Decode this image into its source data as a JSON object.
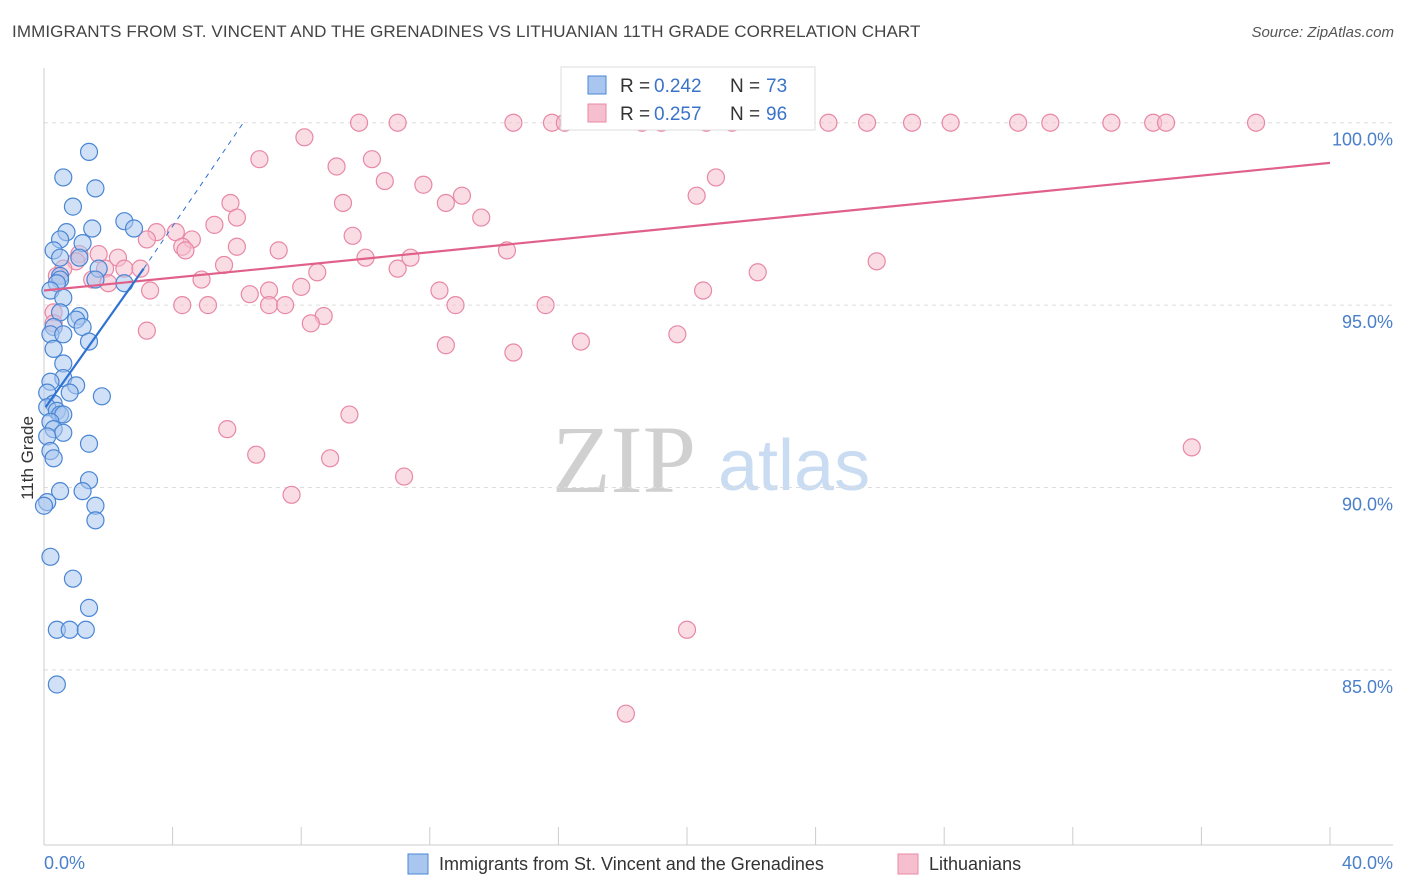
{
  "header": {
    "title": "IMMIGRANTS FROM ST. VINCENT AND THE GRENADINES VS LITHUANIAN 11TH GRADE CORRELATION CHART",
    "source": "Source: ZipAtlas.com"
  },
  "watermark": {
    "zip": "ZIP",
    "atlas": "atlas"
  },
  "colors": {
    "blue_fill": "#a9c6ee",
    "blue_stroke": "#4a86d4",
    "blue_line": "#2e72d2",
    "pink_fill": "#f6bfcf",
    "pink_stroke": "#e888a6",
    "pink_line": "#e0608a",
    "grid": "#dddddd",
    "tick_text": "#4a7fc9"
  },
  "legend": {
    "series1": {
      "r_label": "R =",
      "r_value": "0.242",
      "n_label": "N =",
      "n_value": "73"
    },
    "series2": {
      "r_label": "R =",
      "r_value": "0.257",
      "n_label": "N =",
      "n_value": "96"
    }
  },
  "bottom_legend": {
    "series1": "Immigrants from St. Vincent and the Grenadines",
    "series2": "Lithuanians"
  },
  "chart_data": {
    "type": "scatter",
    "title": "IMMIGRANTS FROM ST. VINCENT AND THE GRENADINES VS LITHUANIAN 11TH GRADE CORRELATION CHART",
    "xlabel": "",
    "ylabel": "11th Grade",
    "xlim": [
      0,
      40
    ],
    "ylim": [
      80.2,
      101.5
    ],
    "x_tick_labels": [
      "0.0%",
      "40.0%"
    ],
    "y_ticks": [
      {
        "value": 85,
        "label": "85.0%"
      },
      {
        "value": 90,
        "label": "90.0%"
      },
      {
        "value": 95,
        "label": "95.0%"
      },
      {
        "value": 100,
        "label": "100.0%"
      }
    ],
    "series": [
      {
        "name": "Immigrants from St. Vincent and the Grenadines",
        "R": 0.242,
        "N": 73,
        "trend": {
          "x": [
            0.05,
            3.1
          ],
          "y": [
            92.2,
            96.0
          ]
        },
        "trend_extension": {
          "x": [
            3.1,
            6.2
          ],
          "y": [
            96.0,
            100.0
          ]
        },
        "points": [
          [
            1.4,
            99.2
          ],
          [
            0.6,
            98.5
          ],
          [
            1.6,
            98.2
          ],
          [
            0.9,
            97.7
          ],
          [
            2.5,
            97.3
          ],
          [
            0.7,
            97.0
          ],
          [
            1.5,
            97.1
          ],
          [
            2.8,
            97.1
          ],
          [
            0.5,
            96.8
          ],
          [
            1.2,
            96.7
          ],
          [
            0.3,
            96.5
          ],
          [
            0.5,
            96.3
          ],
          [
            1.1,
            96.3
          ],
          [
            1.7,
            96.0
          ],
          [
            0.5,
            95.8
          ],
          [
            0.5,
            95.7
          ],
          [
            0.4,
            95.6
          ],
          [
            1.6,
            95.7
          ],
          [
            2.5,
            95.6
          ],
          [
            0.2,
            95.4
          ],
          [
            0.6,
            95.2
          ],
          [
            0.5,
            94.8
          ],
          [
            1.1,
            94.7
          ],
          [
            1.0,
            94.6
          ],
          [
            1.2,
            94.4
          ],
          [
            0.3,
            94.4
          ],
          [
            0.2,
            94.2
          ],
          [
            0.6,
            94.2
          ],
          [
            1.4,
            94.0
          ],
          [
            0.3,
            93.8
          ],
          [
            0.6,
            93.4
          ],
          [
            0.6,
            93.0
          ],
          [
            0.2,
            92.9
          ],
          [
            1.0,
            92.8
          ],
          [
            0.1,
            92.6
          ],
          [
            0.8,
            92.6
          ],
          [
            1.8,
            92.5
          ],
          [
            0.3,
            92.3
          ],
          [
            0.1,
            92.2
          ],
          [
            0.4,
            92.1
          ],
          [
            0.5,
            92.0
          ],
          [
            0.6,
            92.0
          ],
          [
            0.2,
            91.8
          ],
          [
            0.3,
            91.6
          ],
          [
            0.6,
            91.5
          ],
          [
            0.1,
            91.4
          ],
          [
            1.4,
            91.2
          ],
          [
            0.2,
            91.0
          ],
          [
            0.3,
            90.8
          ],
          [
            1.4,
            90.2
          ],
          [
            0.5,
            89.9
          ],
          [
            1.2,
            89.9
          ],
          [
            0.1,
            89.6
          ],
          [
            0.0,
            89.5
          ],
          [
            1.6,
            89.5
          ],
          [
            1.6,
            89.1
          ],
          [
            0.2,
            88.1
          ],
          [
            0.9,
            87.5
          ],
          [
            1.4,
            86.7
          ],
          [
            0.4,
            86.1
          ],
          [
            0.8,
            86.1
          ],
          [
            1.3,
            86.1
          ],
          [
            0.4,
            84.6
          ]
        ]
      },
      {
        "name": "Lithuanians",
        "R": 0.257,
        "N": 96,
        "trend": {
          "x": [
            0.0,
            40.0
          ],
          "y": [
            95.4,
            98.9
          ]
        },
        "points": [
          [
            9.8,
            100.0
          ],
          [
            11.0,
            100.0
          ],
          [
            14.6,
            100.0
          ],
          [
            15.8,
            100.0
          ],
          [
            16.2,
            100.0
          ],
          [
            18.6,
            100.0
          ],
          [
            19.2,
            100.0
          ],
          [
            20.6,
            100.0
          ],
          [
            21.4,
            100.0
          ],
          [
            24.4,
            100.0
          ],
          [
            25.6,
            100.0
          ],
          [
            27.0,
            100.0
          ],
          [
            28.2,
            100.0
          ],
          [
            30.3,
            100.0
          ],
          [
            31.3,
            100.0
          ],
          [
            33.2,
            100.0
          ],
          [
            34.5,
            100.0
          ],
          [
            34.9,
            100.0
          ],
          [
            37.7,
            100.0
          ],
          [
            8.1,
            99.6
          ],
          [
            6.7,
            99.0
          ],
          [
            10.2,
            99.0
          ],
          [
            9.1,
            98.8
          ],
          [
            10.6,
            98.4
          ],
          [
            11.8,
            98.3
          ],
          [
            20.9,
            98.5
          ],
          [
            20.3,
            98.0
          ],
          [
            13.0,
            98.0
          ],
          [
            12.5,
            97.8
          ],
          [
            9.3,
            97.8
          ],
          [
            5.8,
            97.8
          ],
          [
            6.0,
            97.4
          ],
          [
            13.6,
            97.4
          ],
          [
            5.3,
            97.2
          ],
          [
            3.5,
            97.0
          ],
          [
            4.1,
            97.0
          ],
          [
            3.2,
            96.8
          ],
          [
            4.6,
            96.8
          ],
          [
            9.6,
            96.9
          ],
          [
            4.3,
            96.6
          ],
          [
            4.4,
            96.5
          ],
          [
            6.0,
            96.6
          ],
          [
            7.3,
            96.5
          ],
          [
            14.4,
            96.5
          ],
          [
            1.1,
            96.4
          ],
          [
            1.7,
            96.4
          ],
          [
            2.3,
            96.3
          ],
          [
            1.0,
            96.2
          ],
          [
            10.0,
            96.3
          ],
          [
            11.4,
            96.3
          ],
          [
            25.9,
            96.2
          ],
          [
            5.6,
            96.1
          ],
          [
            0.6,
            96.0
          ],
          [
            1.9,
            96.0
          ],
          [
            2.5,
            96.0
          ],
          [
            3.0,
            96.0
          ],
          [
            8.5,
            95.9
          ],
          [
            11.0,
            96.0
          ],
          [
            22.2,
            95.9
          ],
          [
            0.4,
            95.8
          ],
          [
            1.5,
            95.7
          ],
          [
            2.0,
            95.6
          ],
          [
            4.9,
            95.7
          ],
          [
            3.3,
            95.4
          ],
          [
            6.4,
            95.3
          ],
          [
            7.0,
            95.4
          ],
          [
            8.0,
            95.5
          ],
          [
            12.3,
            95.4
          ],
          [
            20.5,
            95.4
          ],
          [
            4.3,
            95.0
          ],
          [
            5.1,
            95.0
          ],
          [
            7.0,
            95.0
          ],
          [
            7.5,
            95.0
          ],
          [
            12.8,
            95.0
          ],
          [
            15.6,
            95.0
          ],
          [
            0.3,
            94.8
          ],
          [
            8.7,
            94.7
          ],
          [
            8.3,
            94.5
          ],
          [
            0.3,
            94.5
          ],
          [
            3.2,
            94.3
          ],
          [
            19.7,
            94.2
          ],
          [
            16.7,
            94.0
          ],
          [
            12.5,
            93.9
          ],
          [
            14.6,
            93.7
          ],
          [
            9.5,
            92.0
          ],
          [
            5.7,
            91.6
          ],
          [
            6.6,
            90.9
          ],
          [
            8.9,
            90.8
          ],
          [
            11.2,
            90.3
          ],
          [
            7.7,
            89.8
          ],
          [
            35.7,
            91.1
          ],
          [
            20.0,
            86.1
          ],
          [
            18.1,
            83.8
          ]
        ]
      }
    ]
  },
  "axes": {
    "ylabel": "11th Grade",
    "x_min_label": "0.0%",
    "x_max_label": "40.0%"
  }
}
